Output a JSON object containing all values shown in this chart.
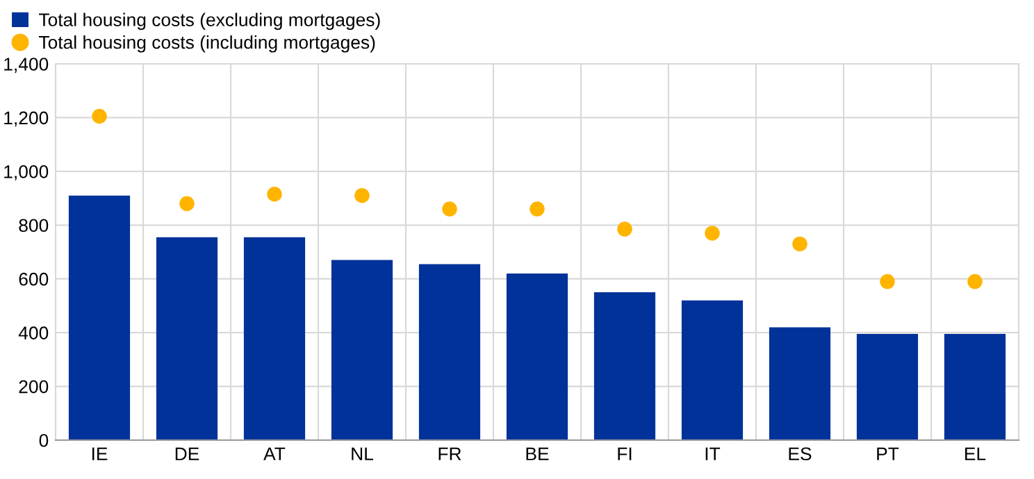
{
  "chart_data": {
    "type": "bar",
    "categories": [
      "IE",
      "DE",
      "AT",
      "NL",
      "FR",
      "BE",
      "FI",
      "IT",
      "ES",
      "PT",
      "EL"
    ],
    "series": [
      {
        "name": "Total housing costs (excluding mortgages)",
        "color": "#003299",
        "values": [
          910,
          755,
          755,
          670,
          655,
          620,
          550,
          520,
          420,
          395,
          395
        ]
      },
      {
        "name": "Total housing costs (including mortgages)",
        "color": "#ffb400",
        "type": "scatter",
        "marker": "circle",
        "values": [
          1205,
          880,
          915,
          910,
          860,
          860,
          785,
          770,
          730,
          590,
          590
        ]
      }
    ],
    "ylim": [
      0,
      1400
    ],
    "yticks": [
      {
        "value": 0,
        "label": "0"
      },
      {
        "value": 200,
        "label": "200"
      },
      {
        "value": 400,
        "label": "400"
      },
      {
        "value": 600,
        "label": "600"
      },
      {
        "value": 800,
        "label": "800"
      },
      {
        "value": 1000,
        "label": "1,000"
      },
      {
        "value": 1200,
        "label": "1,200"
      },
      {
        "value": 1400,
        "label": "1,400"
      }
    ],
    "grid": true,
    "legend": "top left"
  }
}
